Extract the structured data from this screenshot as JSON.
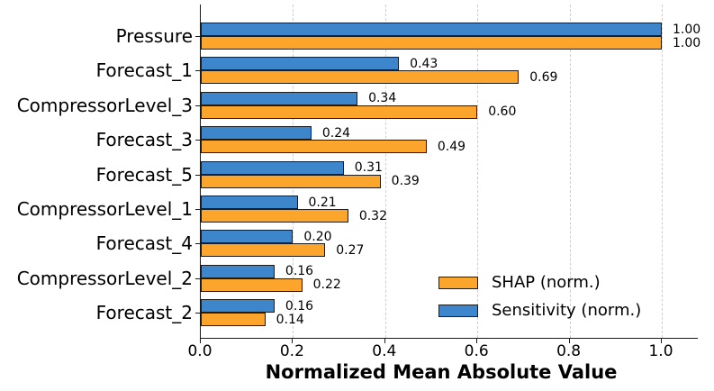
{
  "chart_data": {
    "type": "bar",
    "orientation": "horizontal_grouped",
    "title": "",
    "xlabel": "Normalized Mean Absolute Value",
    "ylabel": "",
    "categories": [
      "Pressure",
      "Forecast_1",
      "CompressorLevel_3",
      "Forecast_3",
      "Forecast_5",
      "CompressorLevel_1",
      "Forecast_4",
      "CompressorLevel_2",
      "Forecast_2"
    ],
    "series": [
      {
        "name": "SHAP (norm.)",
        "color": "#FBA52D",
        "values": [
          1.0,
          0.69,
          0.6,
          0.49,
          0.39,
          0.32,
          0.27,
          0.22,
          0.14
        ]
      },
      {
        "name": "Sensitivity (norm.)",
        "color": "#3D86CC",
        "values": [
          1.0,
          0.43,
          0.34,
          0.24,
          0.31,
          0.21,
          0.2,
          0.16,
          0.16
        ]
      }
    ],
    "bar_order_top_to_bottom": [
      "Sensitivity (norm.)",
      "SHAP (norm.)"
    ],
    "value_labels": {
      "SHAP (norm.)": [
        "1.00",
        "0.69",
        "0.60",
        "0.49",
        "0.39",
        "0.32",
        "0.27",
        "0.22",
        "0.14"
      ],
      "Sensitivity (norm.)": [
        "1.00",
        "0.43",
        "0.34",
        "0.24",
        "0.31",
        "0.21",
        "0.20",
        "0.16",
        "0.16"
      ]
    },
    "x_ticks": [
      0.0,
      0.2,
      0.4,
      0.6,
      0.8,
      1.0
    ],
    "x_tick_labels": [
      "0.0",
      "0.2",
      "0.4",
      "0.6",
      "0.8",
      "1.0"
    ],
    "xlim": [
      0,
      1.078
    ],
    "grid": {
      "axis": "x",
      "style": "dashed",
      "color": "#cdcdcd"
    },
    "bar_edge_color": "#1c1c1c",
    "legend": {
      "position": "lower-right-inside",
      "frame": false,
      "entries": [
        {
          "label": "SHAP (norm.)",
          "swatch_color": "#FBA52D"
        },
        {
          "label": "Sensitivity (norm.)",
          "swatch_color": "#3D86CC"
        }
      ]
    }
  }
}
